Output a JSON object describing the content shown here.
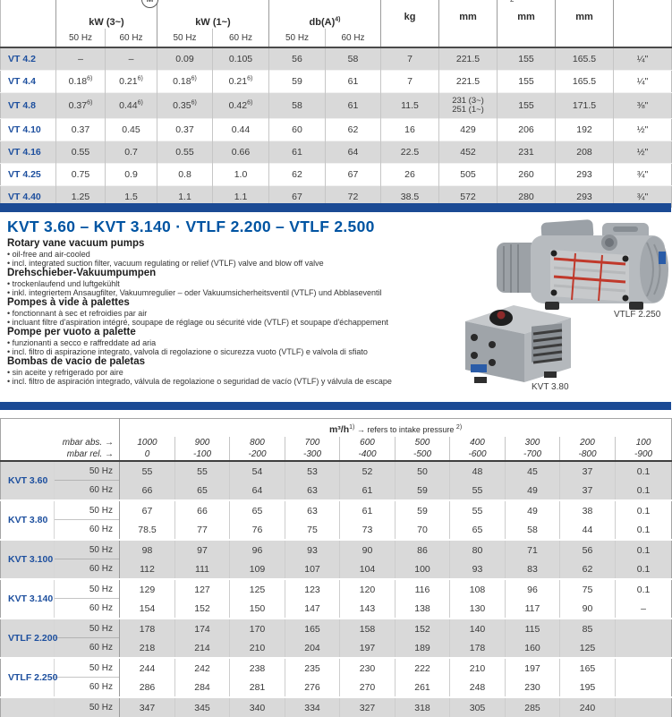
{
  "colors": {
    "accent_blue": "#0054a2",
    "model_blue": "#1d4f9e",
    "bar_blue": "#1b4a94",
    "row_gray": "#d9d9d9"
  },
  "top_table": {
    "motor_symbol": "M",
    "stray_sup": "2",
    "groups": [
      {
        "label": "kW (3~)",
        "sup": ""
      },
      {
        "label": "kW (1~)",
        "sup": ""
      },
      {
        "label": "db(A)",
        "sup": "4)"
      }
    ],
    "freq_cols": [
      "50 Hz",
      "60 Hz",
      "50 Hz",
      "60 Hz",
      "50 Hz",
      "60 Hz"
    ],
    "unit_cols": [
      "kg",
      "mm",
      "mm",
      "mm",
      ""
    ],
    "rows": [
      {
        "model": "VT 4.2",
        "values": [
          "–",
          "–",
          "0.09",
          "0.105",
          "56",
          "58",
          "7",
          "221.5",
          "155",
          "165.5",
          "¼\""
        ]
      },
      {
        "model": "VT 4.4",
        "values": [
          "0.18|6)",
          "0.21|6)",
          "0.18|6)",
          "0.21|6)",
          "59",
          "61",
          "7",
          "221.5",
          "155",
          "165.5",
          "¼\""
        ]
      },
      {
        "model": "VT 4.8",
        "values": [
          "0.37|6)",
          "0.44|6)",
          "0.35|6)",
          "0.42|6)",
          "58",
          "61",
          "11.5",
          "231 (3~)\n251 (1~)",
          "155",
          "171.5",
          "⅜\""
        ]
      },
      {
        "model": "VT 4.10",
        "values": [
          "0.37",
          "0.45",
          "0.37",
          "0.44",
          "60",
          "62",
          "16",
          "429",
          "206",
          "192",
          "½\""
        ]
      },
      {
        "model": "VT 4.16",
        "values": [
          "0.55",
          "0.7",
          "0.55",
          "0.66",
          "61",
          "64",
          "22.5",
          "452",
          "231",
          "208",
          "½\""
        ]
      },
      {
        "model": "VT 4.25",
        "values": [
          "0.75",
          "0.9",
          "0.8",
          "1.0",
          "62",
          "67",
          "26",
          "505",
          "260",
          "293",
          "¾\""
        ]
      },
      {
        "model": "VT 4.40",
        "values": [
          "1.25",
          "1.5",
          "1.1",
          "1.1",
          "67",
          "72",
          "38.5",
          "572",
          "280",
          "293",
          "¾\""
        ]
      }
    ]
  },
  "section": {
    "heading": "KVT 3.60 – KVT 3.140   ·   VTLF 2.200 – VTLF 2.500",
    "blocks": [
      {
        "title": "Rotary vane vacuum pumps",
        "bullets": [
          "oil-free and air-cooled",
          "incl. integrated suction filter, vacuum regulating or relief (VTLF) valve and blow off valve"
        ]
      },
      {
        "title": "Drehschieber-Vakuumpumpen",
        "bullets": [
          "trockenlaufend und luftgekühlt",
          "inkl. integriertem Ansaugfilter, Vakuumregulier – oder Vakuumsicherheitsventil (VTLF) und Abblaseventil"
        ]
      },
      {
        "title": "Pompes à vide à palettes",
        "bullets": [
          "fonctionnant à sec et refroidies par air",
          "incluant filtre d'aspiration intégré, soupape de réglage ou sécurité vide (VTLF) et soupape d'échappement"
        ]
      },
      {
        "title": "Pompe per vuoto a palette",
        "bullets": [
          "funzionanti a secco e raffreddate ad aria",
          "incl. filtro di aspirazione integrato, valvola di regolazione o sicurezza vuoto (VTLF) e valvola di sfiato"
        ]
      },
      {
        "title": "Bombas de vacio de paletas",
        "bullets": [
          "sin aceite y refrigerado por aire",
          "incl. filtro de aspiración integrado, válvula de regolazione o seguridad de vacío (VTLF) y válvula de escape"
        ]
      }
    ],
    "image_captions": {
      "top": "VTLF 2.250",
      "bottom": "KVT 3.80"
    }
  },
  "bottom_table": {
    "title_main": "m³/h",
    "title_sup1": "1)",
    "title_rest": " → refers to intake pressure ",
    "title_sup2": "2)",
    "mbar_abs_label": "mbar abs. →",
    "mbar_rel_label": "mbar rel. →",
    "mbar_abs": [
      "1000",
      "900",
      "800",
      "700",
      "600",
      "500",
      "400",
      "300",
      "200",
      "100"
    ],
    "mbar_rel": [
      "0",
      "-100",
      "-200",
      "-300",
      "-400",
      "-500",
      "-600",
      "-700",
      "-800",
      "-900"
    ],
    "groups": [
      {
        "model": "KVT 3.60",
        "rows": [
          {
            "hz": "50 Hz",
            "values": [
              "55",
              "55",
              "54",
              "53",
              "52",
              "50",
              "48",
              "45",
              "37",
              "0.1"
            ]
          },
          {
            "hz": "60 Hz",
            "values": [
              "66",
              "65",
              "64",
              "63",
              "61",
              "59",
              "55",
              "49",
              "37",
              "0.1"
            ]
          }
        ]
      },
      {
        "model": "KVT 3.80",
        "rows": [
          {
            "hz": "50 Hz",
            "values": [
              "67",
              "66",
              "65",
              "63",
              "61",
              "59",
              "55",
              "49",
              "38",
              "0.1"
            ]
          },
          {
            "hz": "60 Hz",
            "values": [
              "78.5",
              "77",
              "76",
              "75",
              "73",
              "70",
              "65",
              "58",
              "44",
              "0.1"
            ]
          }
        ]
      },
      {
        "model": "KVT 3.100",
        "rows": [
          {
            "hz": "50 Hz",
            "values": [
              "98",
              "97",
              "96",
              "93",
              "90",
              "86",
              "80",
              "71",
              "56",
              "0.1"
            ]
          },
          {
            "hz": "60 Hz",
            "values": [
              "112",
              "111",
              "109",
              "107",
              "104",
              "100",
              "93",
              "83",
              "62",
              "0.1"
            ]
          }
        ]
      },
      {
        "model": "KVT 3.140",
        "rows": [
          {
            "hz": "50 Hz",
            "values": [
              "129",
              "127",
              "125",
              "123",
              "120",
              "116",
              "108",
              "96",
              "75",
              "0.1"
            ]
          },
          {
            "hz": "60 Hz",
            "values": [
              "154",
              "152",
              "150",
              "147",
              "143",
              "138",
              "130",
              "117",
              "90",
              "–"
            ]
          }
        ]
      },
      {
        "model": "VTLF 2.200",
        "rows": [
          {
            "hz": "50 Hz",
            "values": [
              "178",
              "174",
              "170",
              "165",
              "158",
              "152",
              "140",
              "115",
              "85",
              ""
            ]
          },
          {
            "hz": "60 Hz",
            "values": [
              "218",
              "214",
              "210",
              "204",
              "197",
              "189",
              "178",
              "160",
              "125",
              ""
            ]
          }
        ]
      },
      {
        "model": "VTLF 2.250",
        "rows": [
          {
            "hz": "50 Hz",
            "values": [
              "244",
              "242",
              "238",
              "235",
              "230",
              "222",
              "210",
              "197",
              "165",
              ""
            ]
          },
          {
            "hz": "60 Hz",
            "values": [
              "286",
              "284",
              "281",
              "276",
              "270",
              "261",
              "248",
              "230",
              "195",
              ""
            ]
          }
        ]
      }
    ],
    "partial_row": {
      "hz": "50 Hz",
      "values": [
        "347",
        "345",
        "340",
        "334",
        "327",
        "318",
        "305",
        "285",
        "240",
        ""
      ]
    }
  }
}
